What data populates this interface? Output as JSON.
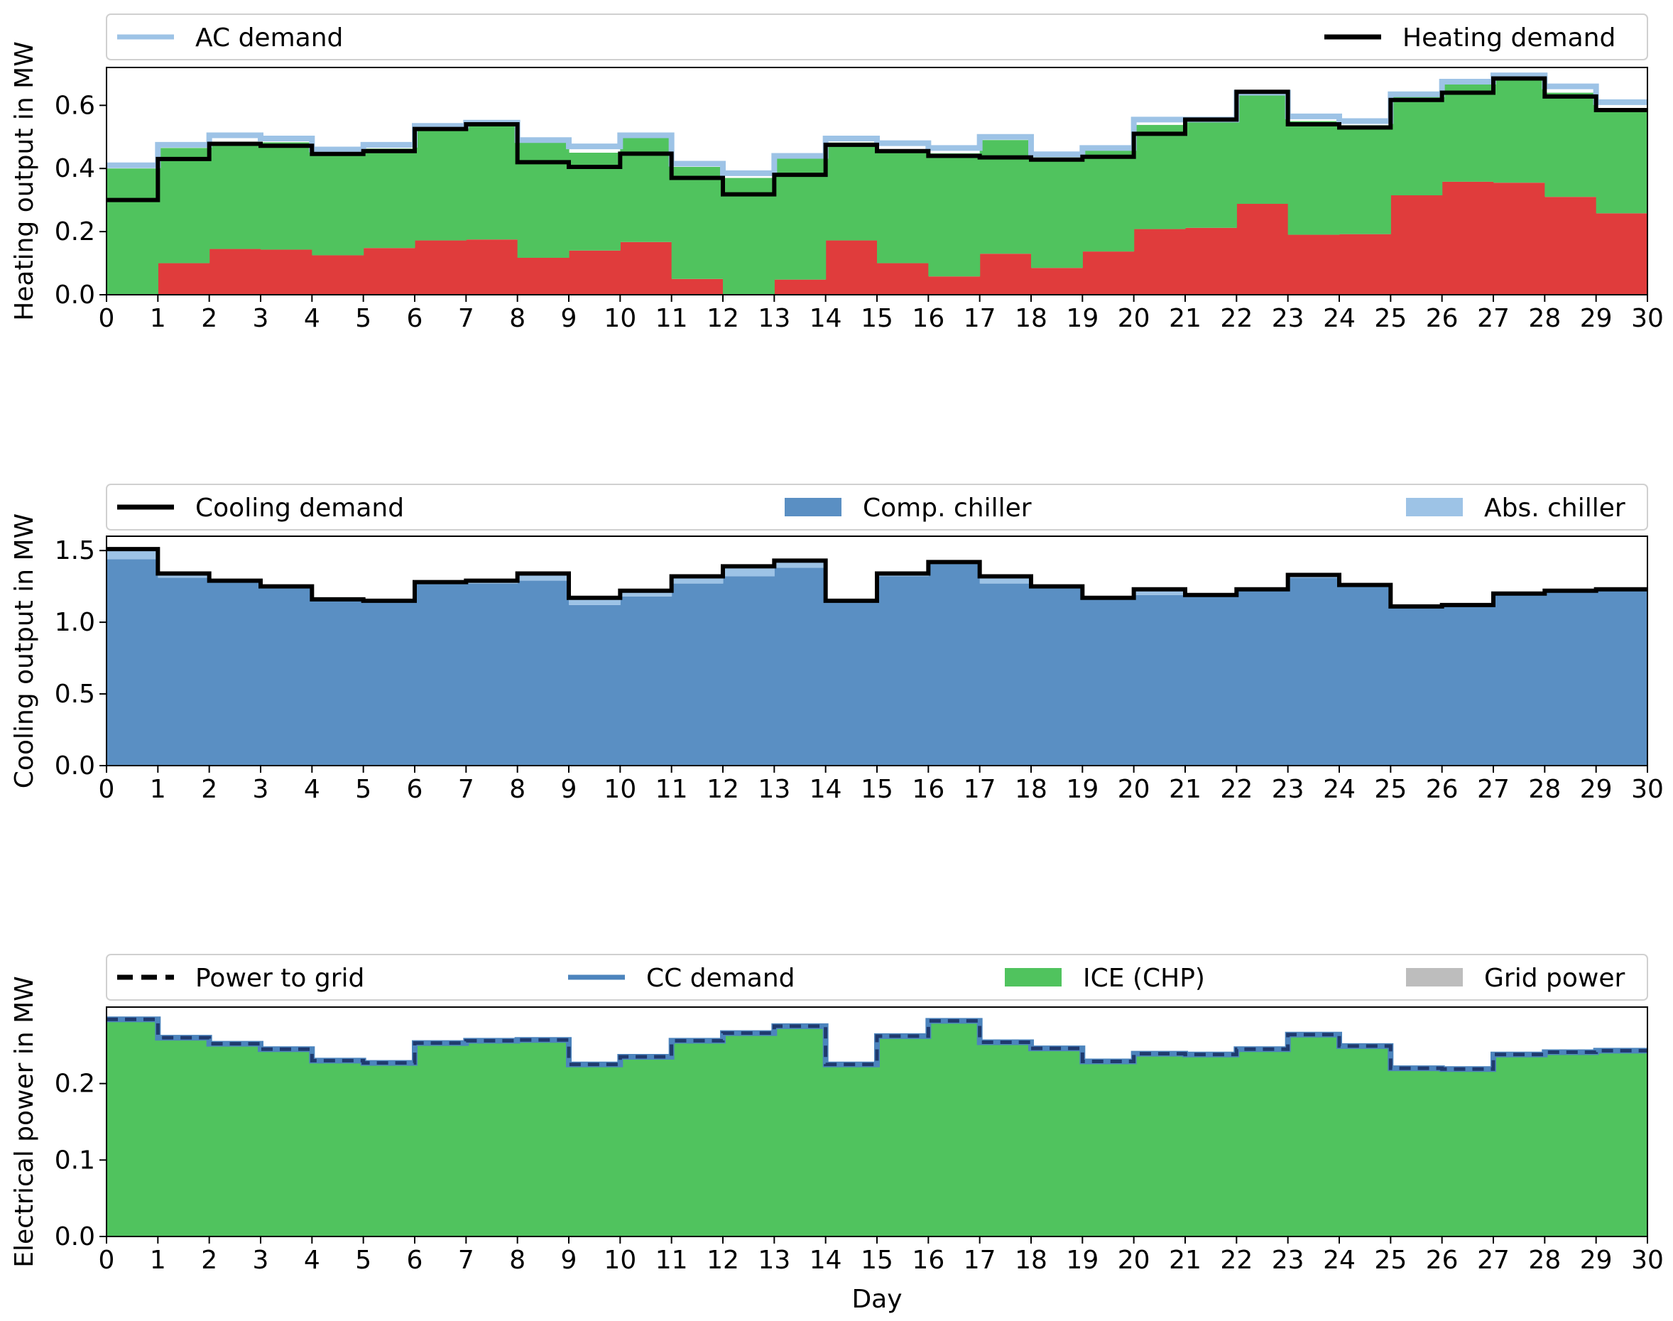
{
  "colors": {
    "red": "#e03c3c",
    "green": "#50c35e",
    "light_blue": "#9dc3e6",
    "mid_blue": "#5a8fc3",
    "steel_blue": "#4c84bd",
    "dark_navy": "#1f3a6e",
    "gray": "#bdbdbd",
    "black": "#000000"
  },
  "chart_data": [
    {
      "type": "area",
      "ylabel": "Heating output in MW",
      "ylim": [
        0,
        0.72
      ],
      "yticks": [
        0.0,
        0.2,
        0.4,
        0.6
      ],
      "ytick_labels": [
        "0.0",
        "0.2",
        "0.4",
        "0.6"
      ],
      "xlim": [
        0,
        30
      ],
      "xticks": [
        0,
        1,
        2,
        3,
        4,
        5,
        6,
        7,
        8,
        9,
        10,
        11,
        12,
        13,
        14,
        15,
        16,
        17,
        18,
        19,
        20,
        21,
        22,
        23,
        24,
        25,
        26,
        27,
        28,
        29,
        30
      ],
      "xlabel": "",
      "legend": [
        "AC demand",
        "Heating demand"
      ],
      "series": [
        {
          "name": "",
          "kind": "stack",
          "color": "#e03c3c",
          "values": [
            0.0,
            0.1,
            0.145,
            0.143,
            0.125,
            0.148,
            0.172,
            0.175,
            0.117,
            0.14,
            0.167,
            0.05,
            0.0,
            0.048,
            0.172,
            0.1,
            0.058,
            0.13,
            0.085,
            0.137,
            0.208,
            0.212,
            0.288,
            0.19,
            0.192,
            0.315,
            0.358,
            0.355,
            0.31,
            0.258
          ]
        },
        {
          "name": "",
          "kind": "stack",
          "color": "#50c35e",
          "values": [
            0.4,
            0.365,
            0.34,
            0.34,
            0.325,
            0.315,
            0.36,
            0.365,
            0.365,
            0.31,
            0.33,
            0.355,
            0.37,
            0.385,
            0.31,
            0.36,
            0.39,
            0.36,
            0.35,
            0.32,
            0.33,
            0.34,
            0.345,
            0.36,
            0.345,
            0.315,
            0.31,
            0.325,
            0.33,
            0.325
          ]
        },
        {
          "name": "AC demand",
          "kind": "step",
          "color": "#9dc3e6",
          "values": [
            0.41,
            0.475,
            0.505,
            0.495,
            0.46,
            0.475,
            0.535,
            0.545,
            0.49,
            0.47,
            0.505,
            0.415,
            0.385,
            0.44,
            0.495,
            0.48,
            0.465,
            0.5,
            0.445,
            0.465,
            0.555,
            0.555,
            0.64,
            0.565,
            0.55,
            0.635,
            0.675,
            0.695,
            0.66,
            0.61
          ]
        },
        {
          "name": "Heating demand",
          "kind": "step",
          "color": "#000000",
          "values": [
            0.3,
            0.43,
            0.478,
            0.472,
            0.446,
            0.455,
            0.525,
            0.54,
            0.42,
            0.405,
            0.447,
            0.37,
            0.318,
            0.38,
            0.475,
            0.455,
            0.44,
            0.435,
            0.428,
            0.437,
            0.51,
            0.555,
            0.643,
            0.54,
            0.53,
            0.617,
            0.64,
            0.685,
            0.628,
            0.585
          ]
        }
      ]
    },
    {
      "type": "area",
      "ylabel": "Cooling output in MW",
      "ylim": [
        0,
        1.6
      ],
      "yticks": [
        0.0,
        0.5,
        1.0,
        1.5
      ],
      "ytick_labels": [
        "0.0",
        "0.5",
        "1.0",
        "1.5"
      ],
      "xlim": [
        0,
        30
      ],
      "xticks": [
        0,
        1,
        2,
        3,
        4,
        5,
        6,
        7,
        8,
        9,
        10,
        11,
        12,
        13,
        14,
        15,
        16,
        17,
        18,
        19,
        20,
        21,
        22,
        23,
        24,
        25,
        26,
        27,
        28,
        29,
        30
      ],
      "xlabel": "",
      "legend": [
        "Cooling demand",
        "Comp. chiller",
        "Abs. chiller"
      ],
      "series": [
        {
          "name": "Comp. chiller",
          "kind": "stack",
          "color": "#5a8fc3",
          "values": [
            1.44,
            1.31,
            1.28,
            1.24,
            1.15,
            1.15,
            1.27,
            1.27,
            1.29,
            1.12,
            1.18,
            1.27,
            1.32,
            1.38,
            1.14,
            1.32,
            1.41,
            1.27,
            1.24,
            1.16,
            1.19,
            1.18,
            1.22,
            1.31,
            1.25,
            1.11,
            1.12,
            1.19,
            1.22,
            1.22
          ]
        },
        {
          "name": "Abs. chiller",
          "kind": "stack",
          "color": "#9dc3e6",
          "values": [
            0.07,
            0.02,
            0.01,
            0.005,
            0.005,
            0.0,
            0.005,
            0.015,
            0.045,
            0.04,
            0.035,
            0.04,
            0.07,
            0.04,
            0.005,
            0.015,
            0.01,
            0.05,
            0.01,
            0.0,
            0.03,
            0.01,
            0.005,
            0.02,
            0.01,
            0.0,
            0.0,
            0.01,
            0.0,
            0.01
          ]
        },
        {
          "name": "Cooling demand",
          "kind": "step",
          "color": "#000000",
          "values": [
            1.51,
            1.34,
            1.29,
            1.25,
            1.16,
            1.15,
            1.28,
            1.29,
            1.34,
            1.17,
            1.22,
            1.32,
            1.39,
            1.43,
            1.15,
            1.34,
            1.42,
            1.32,
            1.25,
            1.17,
            1.23,
            1.19,
            1.23,
            1.33,
            1.26,
            1.11,
            1.12,
            1.2,
            1.22,
            1.23
          ]
        }
      ]
    },
    {
      "type": "area",
      "ylabel": "Electrical power in MW",
      "ylim": [
        0,
        0.3
      ],
      "yticks": [
        0.0,
        0.1,
        0.2
      ],
      "ytick_labels": [
        "0.0",
        "0.1",
        "0.2"
      ],
      "xlim": [
        0,
        30
      ],
      "xticks": [
        0,
        1,
        2,
        3,
        4,
        5,
        6,
        7,
        8,
        9,
        10,
        11,
        12,
        13,
        14,
        15,
        16,
        17,
        18,
        19,
        20,
        21,
        22,
        23,
        24,
        25,
        26,
        27,
        28,
        29,
        30
      ],
      "xlabel": "Day",
      "legend": [
        "Power to grid",
        "CC demand",
        "ICE (CHP)",
        "Grid power"
      ],
      "series": [
        {
          "name": "Grid power",
          "kind": "stack",
          "color": "#bdbdbd",
          "values": [
            0,
            0,
            0,
            0,
            0,
            0,
            0,
            0,
            0,
            0,
            0,
            0,
            0,
            0,
            0,
            0,
            0,
            0,
            0,
            0,
            0,
            0,
            0,
            0,
            0,
            0,
            0,
            0,
            0,
            0
          ]
        },
        {
          "name": "ICE (CHP)",
          "kind": "stack",
          "color": "#50c35e",
          "values": [
            0.284,
            0.26,
            0.252,
            0.245,
            0.23,
            0.227,
            0.253,
            0.256,
            0.257,
            0.225,
            0.235,
            0.256,
            0.266,
            0.275,
            0.225,
            0.262,
            0.282,
            0.254,
            0.246,
            0.229,
            0.239,
            0.238,
            0.245,
            0.264,
            0.249,
            0.22,
            0.219,
            0.238,
            0.241,
            0.243
          ]
        },
        {
          "name": "CC demand",
          "kind": "step",
          "color": "#4c84bd",
          "values": [
            0.284,
            0.26,
            0.252,
            0.245,
            0.23,
            0.227,
            0.253,
            0.256,
            0.257,
            0.225,
            0.235,
            0.256,
            0.266,
            0.275,
            0.225,
            0.262,
            0.282,
            0.254,
            0.246,
            0.229,
            0.239,
            0.238,
            0.245,
            0.264,
            0.249,
            0.22,
            0.219,
            0.238,
            0.241,
            0.243
          ]
        },
        {
          "name": "Power to grid",
          "kind": "dash",
          "color": "#1f3a6e",
          "values": [
            0.284,
            0.26,
            0.252,
            0.245,
            0.23,
            0.227,
            0.253,
            0.256,
            0.257,
            0.225,
            0.235,
            0.256,
            0.266,
            0.275,
            0.225,
            0.262,
            0.282,
            0.254,
            0.246,
            0.229,
            0.239,
            0.238,
            0.245,
            0.264,
            0.249,
            0.22,
            0.219,
            0.238,
            0.241,
            0.243
          ]
        }
      ]
    }
  ]
}
